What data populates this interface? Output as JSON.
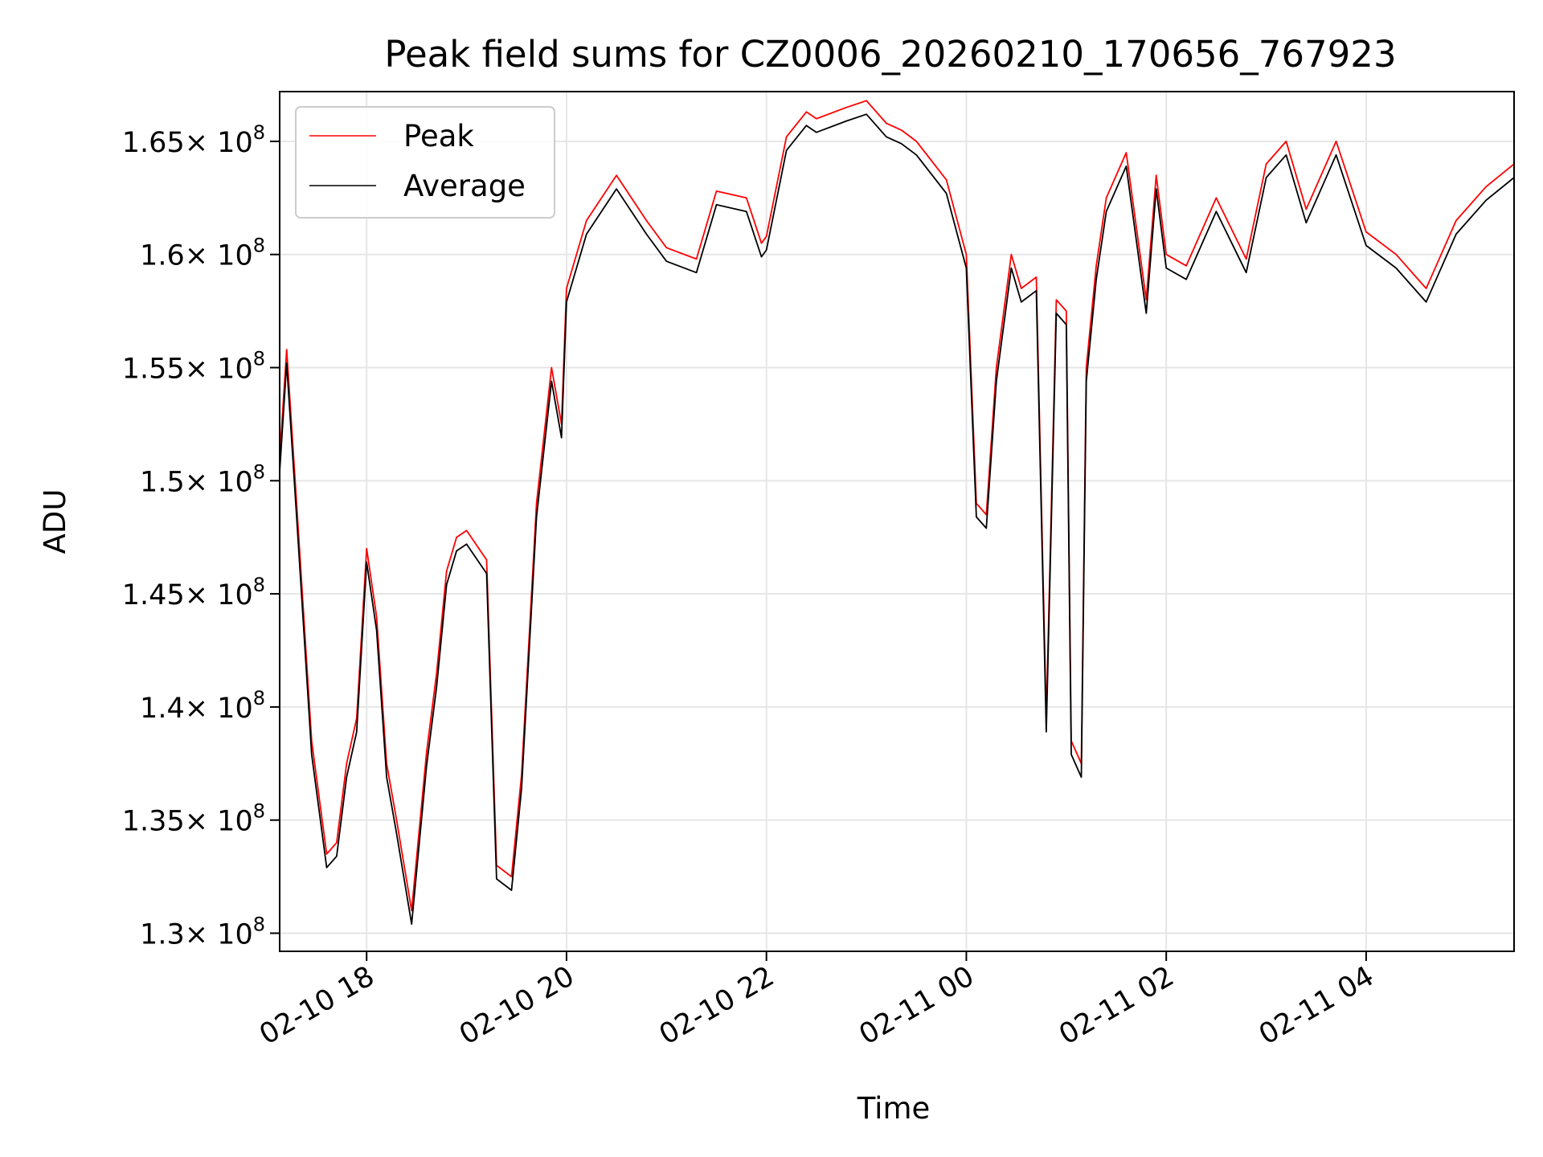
{
  "chart_data": {
    "type": "line",
    "title": "Peak field sums for CZ0006_20260210_170656_767923",
    "xlabel": "Time",
    "ylabel": "ADU",
    "xlim_hours": [
      17.13,
      5.48
    ],
    "ylim": [
      129200000,
      167200000
    ],
    "x_ticks": [
      {
        "label": "02-10 18",
        "hour": 18
      },
      {
        "label": "02-10 20",
        "hour": 20
      },
      {
        "label": "02-10 22",
        "hour": 22
      },
      {
        "label": "02-11 00",
        "hour": 24
      },
      {
        "label": "02-11 02",
        "hour": 26
      },
      {
        "label": "02-11 04",
        "hour": 28
      }
    ],
    "y_ticks": [
      {
        "mantissa": "1.3",
        "value": 130000000
      },
      {
        "mantissa": "1.35",
        "value": 135000000
      },
      {
        "mantissa": "1.4",
        "value": 140000000
      },
      {
        "mantissa": "1.45",
        "value": 145000000
      },
      {
        "mantissa": "1.5",
        "value": 150000000
      },
      {
        "mantissa": "1.55",
        "value": 155000000
      },
      {
        "mantissa": "1.6",
        "value": 160000000
      },
      {
        "mantissa": "1.65",
        "value": 165000000
      }
    ],
    "y_tick_base": "× 10",
    "y_tick_exponent": "8",
    "grid": true,
    "legend_position": "top-left",
    "series": [
      {
        "name": "Peak",
        "color": "#ff0000",
        "offset": 0
      },
      {
        "name": "Average",
        "color": "#000000",
        "offset": -600000
      }
    ],
    "x_hours": [
      17.13,
      17.2,
      17.3,
      17.45,
      17.6,
      17.7,
      17.8,
      17.9,
      18.0,
      18.1,
      18.2,
      18.3,
      18.45,
      18.6,
      18.7,
      18.8,
      18.9,
      19.0,
      19.2,
      19.3,
      19.45,
      19.55,
      19.7,
      19.85,
      19.95,
      20.0,
      20.2,
      20.5,
      20.8,
      21.0,
      21.3,
      21.5,
      21.8,
      21.95,
      22.0,
      22.2,
      22.4,
      22.5,
      22.8,
      23.0,
      23.2,
      23.35,
      23.5,
      23.8,
      24.0,
      24.1,
      24.2,
      24.3,
      24.45,
      24.55,
      24.7,
      24.8,
      24.9,
      25.0,
      25.05,
      25.15,
      25.2,
      25.3,
      25.4,
      25.6,
      25.8,
      25.9,
      26.0,
      26.2,
      26.5,
      26.8,
      27.0,
      27.2,
      27.4,
      27.7,
      28.0,
      28.3,
      28.6,
      28.9,
      29.2,
      29.48
    ],
    "values": [
      151000000,
      155800000,
      149000000,
      138500000,
      133500000,
      134000000,
      137500000,
      139500000,
      147000000,
      144000000,
      137500000,
      135000000,
      131000000,
      138000000,
      141500000,
      146000000,
      147500000,
      147800000,
      146500000,
      133000000,
      132500000,
      137000000,
      149000000,
      155000000,
      152500000,
      158500000,
      161500000,
      163500000,
      161500000,
      160300000,
      159800000,
      162800000,
      162500000,
      160500000,
      160800000,
      165200000,
      166300000,
      166000000,
      166500000,
      166800000,
      165800000,
      165500000,
      165000000,
      163300000,
      160000000,
      149000000,
      148500000,
      155000000,
      160000000,
      158500000,
      159000000,
      139500000,
      158000000,
      157500000,
      138500000,
      137500000,
      155000000,
      159500000,
      162500000,
      164500000,
      158000000,
      163500000,
      160000000,
      159500000,
      162500000,
      159800000,
      164000000,
      165000000,
      162000000,
      165000000,
      161000000,
      160000000,
      158500000,
      161500000,
      163000000,
      164000000
    ]
  }
}
